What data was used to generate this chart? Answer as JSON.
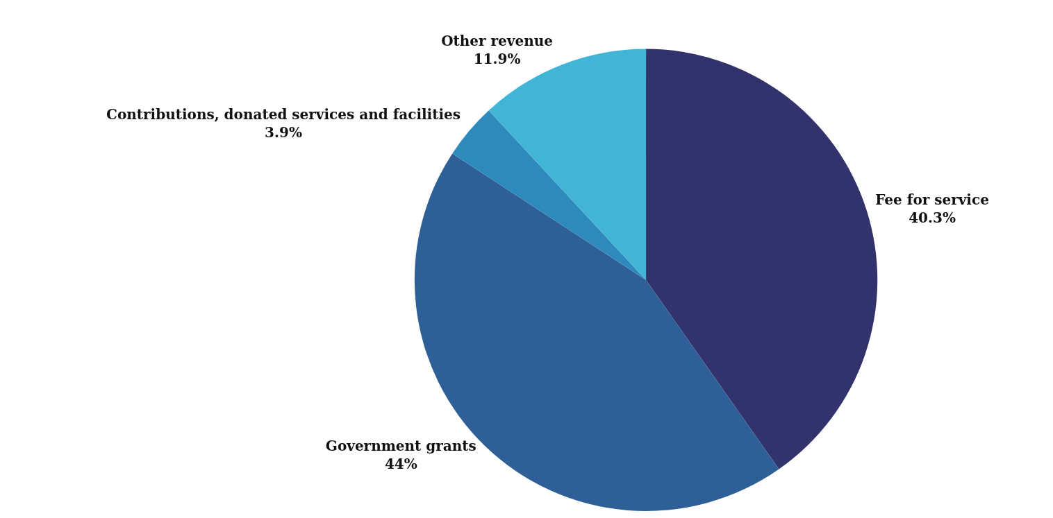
{
  "chart_data": {
    "type": "pie",
    "categories": [
      "Fee for service",
      "Government grants",
      "Contributions, donated services and facilities",
      "Other revenue"
    ],
    "values": [
      40.3,
      44,
      3.9,
      11.9
    ],
    "value_labels": [
      "40.3%",
      "44%",
      "3.9%",
      "11.9%"
    ],
    "colors": [
      "#32336d",
      "#2e5f96",
      "#2e8aba",
      "#42b5d6"
    ],
    "legend": false
  }
}
